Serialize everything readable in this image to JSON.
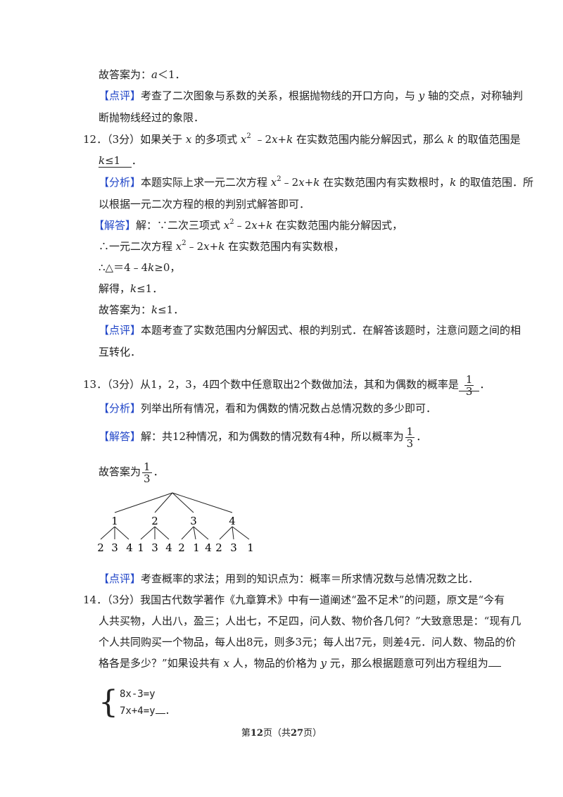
{
  "lines": [
    [
      "故答案为：",
      "a",
      "＜1．"
    ],
    [
      "【点评】",
      "考查了二次图象与系数的关系，根据抛物线的开口方向，与 ",
      "y",
      " 轴的交点，对称轴判"
    ],
    [
      "断抛物线经过的象限．"
    ],
    [
      "12．（3分）如果关于 ",
      "x",
      " 的多项式 ",
      "x",
      "2",
      " ﹣2",
      "x",
      "+",
      "k",
      " 在实数范围内能分解因式，那么 ",
      "k",
      " 的取值范围是"
    ],
    [
      "k",
      "≤1",
      "．"
    ],
    [
      "【分析】",
      "本题实际上求一元二次方程 ",
      "x",
      "2",
      "﹣2",
      "x",
      "+",
      "k",
      " 在实数范围内有实数根时，",
      "k",
      " 的取值范围．所"
    ],
    [
      "以根据一元二次方程的根的判别式解答即可．"
    ],
    [
      "【解答】",
      "解：∵二次三项式 ",
      "x",
      "2",
      "﹣2",
      "x",
      "+",
      "k",
      " 在实数范围内能分解因式，"
    ],
    [
      "∴一元二次方程 ",
      "x",
      "2",
      "﹣2",
      "x",
      "+",
      "k",
      " 在实数范围内有实数根，"
    ],
    [
      "∴△＝4﹣4",
      "k",
      "≥0，"
    ],
    [
      "解得，",
      "k",
      "≤1．"
    ],
    [
      "故答案为：",
      "k",
      "≤1．"
    ],
    [
      "【点评】",
      "本题考查了实数范围内分解因式、根的判别式．在解答该题时，注意问题之间的相"
    ],
    [
      "互转化．"
    ],
    [
      "13．（3分）从1，2，3，4四个数中任意取出2个数做加法，其和为偶数的概率是",
      "1",
      "3",
      "．"
    ],
    [
      "【分析】",
      "列举出所有情况，看和为偶数的情况数占总情况数的多少即可．"
    ],
    [
      "【解答】",
      "解：共12种情况，和为偶数的情况数有4种，所以概率为",
      "1",
      "3",
      "．"
    ],
    [
      "故答案为",
      "1",
      "3",
      "．"
    ],
    [
      "【点评】",
      "考查概率的求法；用到的知识点为：概率＝所求情况数与总情况数之比．"
    ],
    [
      "14．（3分）我国古代数学著作《九章算术》中有一道阐述“盈不足术”的问题，原文是“今有"
    ],
    [
      "人共买物，人出八，盈三；人出七，不足四，问人数、物价各几何？”大致意思是：“现有几"
    ],
    [
      "个人共同购买一个物品，每人出8元，则多3元；每人出7元，则差4元．问人数、物品的价"
    ],
    [
      "格各是多少？”如果设共有 ",
      "x",
      " 人，物品的价格为 ",
      "y",
      " 元，那么根据题意可列出方程组为"
    ]
  ],
  "tree": {
    "top": [
      "1",
      "2",
      "3",
      "4"
    ],
    "leaves": [
      [
        "2",
        "3",
        "4"
      ],
      [
        "1",
        "3",
        "4"
      ],
      [
        "2",
        "1",
        "4"
      ],
      [
        "2",
        "3",
        "1"
      ]
    ]
  },
  "system": {
    "rows": [
      "8x-3=y",
      "7x+4=y"
    ],
    "end": "．"
  },
  "footer": [
    "第",
    "12",
    "页（共",
    "27",
    "页）"
  ]
}
